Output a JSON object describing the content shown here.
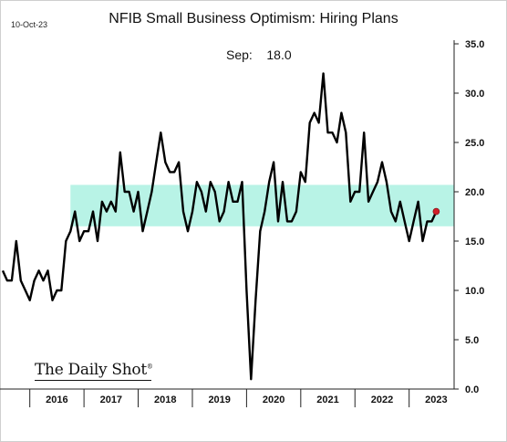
{
  "header": {
    "date": "10-Oct-23",
    "title": "NFIB Small Business Optimism: Hiring Plans",
    "subtitle_label": "Sep:",
    "subtitle_value": "18.0",
    "logo": "The Daily Shot",
    "logo_mark": "®"
  },
  "chart_data": {
    "type": "line",
    "title": "NFIB Small Business Optimism: Hiring Plans",
    "xlabel": "",
    "ylabel": "",
    "x_range": [
      2015.45,
      2023.83
    ],
    "ylim": [
      0,
      35
    ],
    "yticks": [
      0,
      5,
      10,
      15,
      20,
      25,
      30,
      35
    ],
    "ytick_labels": [
      "0.0",
      "5.0",
      "10.0",
      "15.0",
      "20.0",
      "25.0",
      "30.0",
      "35.0"
    ],
    "xtick_labels": [
      "2016",
      "2017",
      "2018",
      "2019",
      "2020",
      "2021",
      "2022",
      "2023"
    ],
    "year_boundaries": [
      2016,
      2017,
      2018,
      2019,
      2020,
      2021,
      2022,
      2023
    ],
    "band": {
      "y0": 16.5,
      "y1": 20.7,
      "color": "#b8f3e6"
    },
    "series": [
      {
        "color": "#000000",
        "points": [
          [
            2015.5,
            12
          ],
          [
            2015.583,
            11
          ],
          [
            2015.667,
            11
          ],
          [
            2015.75,
            15
          ],
          [
            2015.833,
            11
          ],
          [
            2015.917,
            10
          ],
          [
            2016.0,
            9
          ],
          [
            2016.083,
            11
          ],
          [
            2016.167,
            12
          ],
          [
            2016.25,
            11
          ],
          [
            2016.333,
            12
          ],
          [
            2016.417,
            9
          ],
          [
            2016.5,
            10
          ],
          [
            2016.583,
            10
          ],
          [
            2016.667,
            15
          ],
          [
            2016.75,
            16
          ],
          [
            2016.833,
            18
          ],
          [
            2016.917,
            15
          ],
          [
            2017.0,
            16
          ],
          [
            2017.083,
            16
          ],
          [
            2017.167,
            18
          ],
          [
            2017.25,
            15
          ],
          [
            2017.333,
            19
          ],
          [
            2017.417,
            18
          ],
          [
            2017.5,
            19
          ],
          [
            2017.583,
            18
          ],
          [
            2017.667,
            24
          ],
          [
            2017.75,
            20
          ],
          [
            2017.833,
            20
          ],
          [
            2017.917,
            18
          ],
          [
            2018.0,
            20
          ],
          [
            2018.083,
            16
          ],
          [
            2018.167,
            18
          ],
          [
            2018.25,
            20
          ],
          [
            2018.333,
            23
          ],
          [
            2018.417,
            26
          ],
          [
            2018.5,
            23
          ],
          [
            2018.583,
            22
          ],
          [
            2018.667,
            22
          ],
          [
            2018.75,
            23
          ],
          [
            2018.833,
            18
          ],
          [
            2018.917,
            16
          ],
          [
            2019.0,
            18
          ],
          [
            2019.083,
            21
          ],
          [
            2019.167,
            20
          ],
          [
            2019.25,
            18
          ],
          [
            2019.333,
            21
          ],
          [
            2019.417,
            20
          ],
          [
            2019.5,
            17
          ],
          [
            2019.583,
            18
          ],
          [
            2019.667,
            21
          ],
          [
            2019.75,
            19
          ],
          [
            2019.833,
            19
          ],
          [
            2019.917,
            21
          ],
          [
            2020.0,
            10
          ],
          [
            2020.083,
            1
          ],
          [
            2020.167,
            9
          ],
          [
            2020.25,
            16
          ],
          [
            2020.333,
            18
          ],
          [
            2020.417,
            21
          ],
          [
            2020.5,
            23
          ],
          [
            2020.583,
            17
          ],
          [
            2020.667,
            21
          ],
          [
            2020.75,
            17
          ],
          [
            2020.833,
            17
          ],
          [
            2020.917,
            18
          ],
          [
            2021.0,
            22
          ],
          [
            2021.083,
            21
          ],
          [
            2021.167,
            27
          ],
          [
            2021.25,
            28
          ],
          [
            2021.333,
            27
          ],
          [
            2021.417,
            32
          ],
          [
            2021.5,
            26
          ],
          [
            2021.583,
            26
          ],
          [
            2021.667,
            25
          ],
          [
            2021.75,
            28
          ],
          [
            2021.833,
            26
          ],
          [
            2021.917,
            19
          ],
          [
            2022.0,
            20
          ],
          [
            2022.083,
            20
          ],
          [
            2022.167,
            26
          ],
          [
            2022.25,
            19
          ],
          [
            2022.333,
            20
          ],
          [
            2022.417,
            21
          ],
          [
            2022.5,
            23
          ],
          [
            2022.583,
            21
          ],
          [
            2022.667,
            18
          ],
          [
            2022.75,
            17
          ],
          [
            2022.833,
            19
          ],
          [
            2022.917,
            17
          ],
          [
            2023.0,
            15
          ],
          [
            2023.083,
            17
          ],
          [
            2023.167,
            19
          ],
          [
            2023.25,
            15
          ],
          [
            2023.333,
            17
          ],
          [
            2023.417,
            17
          ],
          [
            2023.5,
            18
          ]
        ]
      }
    ],
    "last_point_marker": {
      "x": 2023.5,
      "y": 18.0,
      "color": "#d0202a"
    }
  }
}
